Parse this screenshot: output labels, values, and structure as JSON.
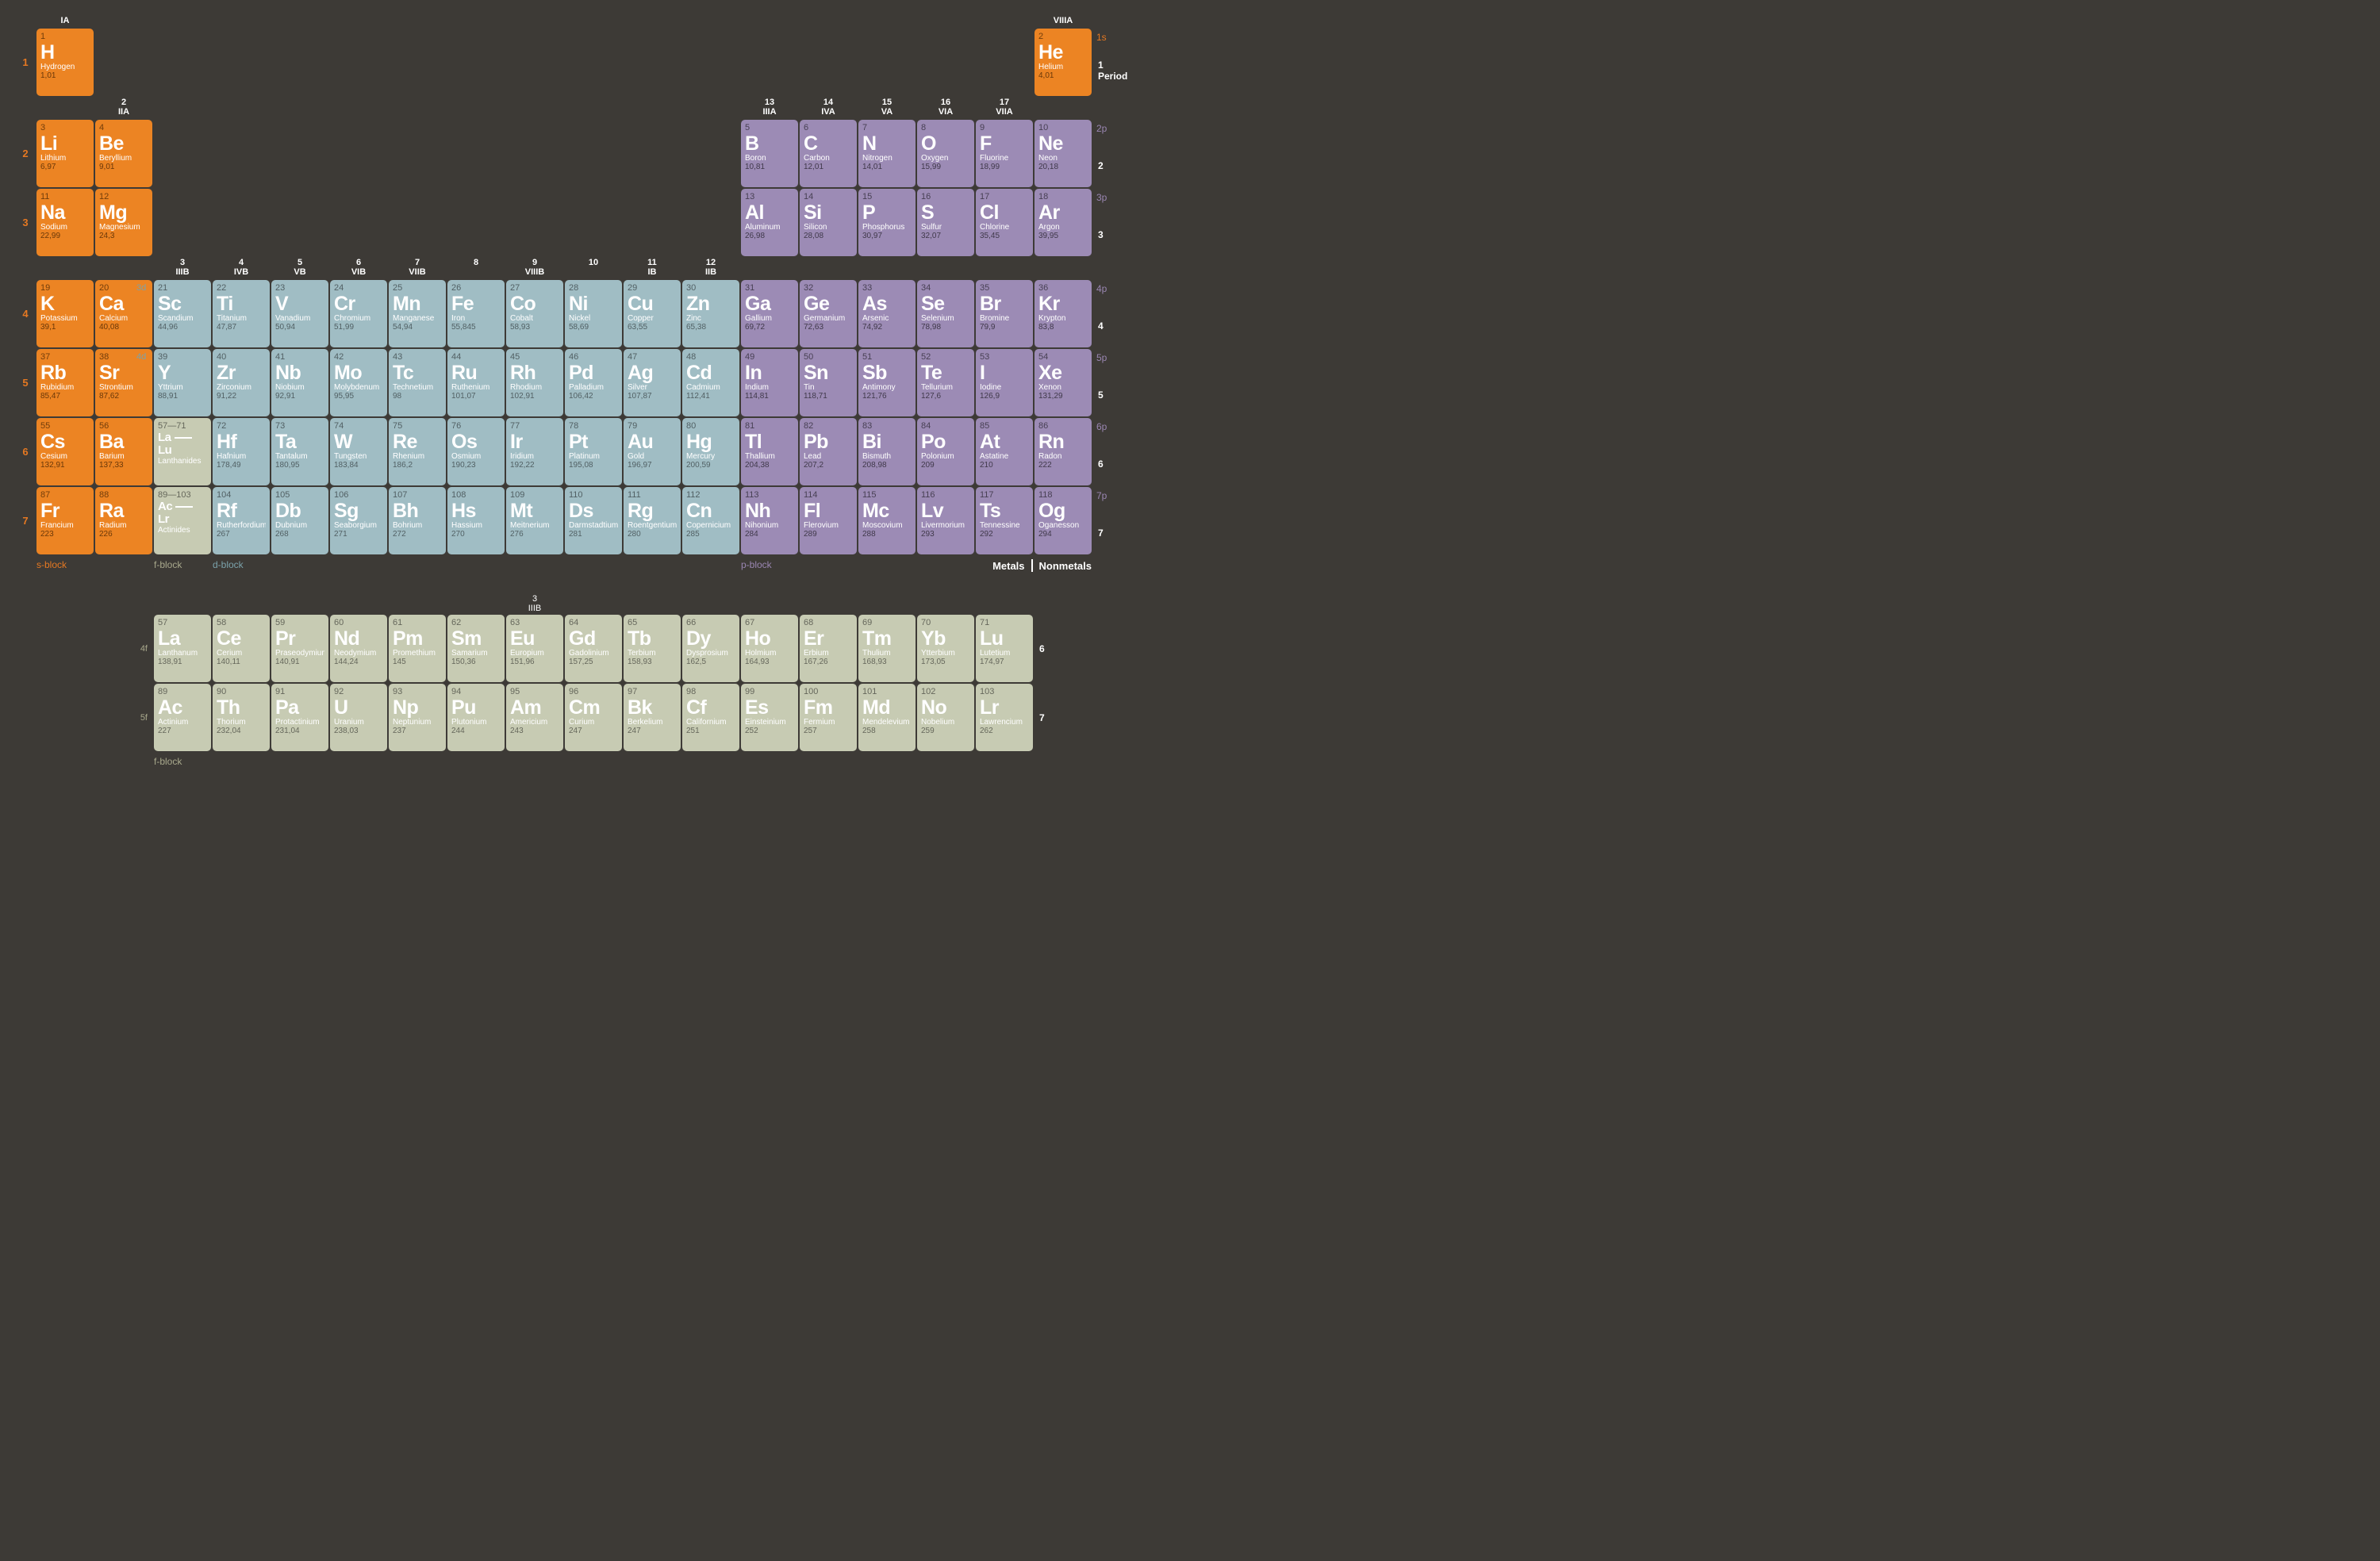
{
  "colors": {
    "background": "#3d3a36",
    "s_block": "#ec8423",
    "p_block": "#9c8bb5",
    "d_block": "#a0bdc4",
    "f_block": "#c7cbb3"
  },
  "group_headers": [
    {
      "col": 1,
      "num": "",
      "label": "IA"
    },
    {
      "col": 2,
      "num": "2",
      "label": "IIA"
    },
    {
      "col": 3,
      "num": "3",
      "label": "IIIB"
    },
    {
      "col": 4,
      "num": "4",
      "label": "IVB"
    },
    {
      "col": 5,
      "num": "5",
      "label": "VB"
    },
    {
      "col": 6,
      "num": "6",
      "label": "VIB"
    },
    {
      "col": 7,
      "num": "7",
      "label": "VIIB"
    },
    {
      "col": 8,
      "num": "8",
      "label": ""
    },
    {
      "col": 9,
      "num": "9",
      "label": "VIIIB"
    },
    {
      "col": 10,
      "num": "10",
      "label": ""
    },
    {
      "col": 11,
      "num": "11",
      "label": "IB"
    },
    {
      "col": 12,
      "num": "12",
      "label": "IIB"
    },
    {
      "col": 13,
      "num": "13",
      "label": "IIIA"
    },
    {
      "col": 14,
      "num": "14",
      "label": "IVA"
    },
    {
      "col": 15,
      "num": "15",
      "label": "VA"
    },
    {
      "col": 16,
      "num": "16",
      "label": "VIA"
    },
    {
      "col": 17,
      "num": "17",
      "label": "VIIA"
    },
    {
      "col": 18,
      "num": "",
      "label": "VIIIA"
    }
  ],
  "shells": {
    "1": "1s",
    "2": "2p",
    "3": "3p",
    "4": "4p",
    "5": "5p",
    "6": "6p",
    "7": "7p"
  },
  "d_sublabels": {
    "4": "3d",
    "5": "4d"
  },
  "f_sublabels": {
    "6": "4f",
    "7": "5f"
  },
  "elements": [
    {
      "n": 1,
      "sym": "H",
      "name": "Hydrogen",
      "mass": "1,01",
      "p": 1,
      "g": 1,
      "block": "s"
    },
    {
      "n": 2,
      "sym": "He",
      "name": "Helium",
      "mass": "4,01",
      "p": 1,
      "g": 18,
      "block": "s"
    },
    {
      "n": 3,
      "sym": "Li",
      "name": "Lithium",
      "mass": "6,97",
      "p": 2,
      "g": 1,
      "block": "s"
    },
    {
      "n": 4,
      "sym": "Be",
      "name": "Beryllium",
      "mass": "9,01",
      "p": 2,
      "g": 2,
      "block": "s"
    },
    {
      "n": 5,
      "sym": "B",
      "name": "Boron",
      "mass": "10,81",
      "p": 2,
      "g": 13,
      "block": "p"
    },
    {
      "n": 6,
      "sym": "C",
      "name": "Carbon",
      "mass": "12,01",
      "p": 2,
      "g": 14,
      "block": "p"
    },
    {
      "n": 7,
      "sym": "N",
      "name": "Nitrogen",
      "mass": "14,01",
      "p": 2,
      "g": 15,
      "block": "p"
    },
    {
      "n": 8,
      "sym": "O",
      "name": "Oxygen",
      "mass": "15,99",
      "p": 2,
      "g": 16,
      "block": "p"
    },
    {
      "n": 9,
      "sym": "F",
      "name": "Fluorine",
      "mass": "18,99",
      "p": 2,
      "g": 17,
      "block": "p"
    },
    {
      "n": 10,
      "sym": "Ne",
      "name": "Neon",
      "mass": "20,18",
      "p": 2,
      "g": 18,
      "block": "p"
    },
    {
      "n": 11,
      "sym": "Na",
      "name": "Sodium",
      "mass": "22,99",
      "p": 3,
      "g": 1,
      "block": "s"
    },
    {
      "n": 12,
      "sym": "Mg",
      "name": "Magnesium",
      "mass": "24,3",
      "p": 3,
      "g": 2,
      "block": "s"
    },
    {
      "n": 13,
      "sym": "Al",
      "name": "Aluminum",
      "mass": "26,98",
      "p": 3,
      "g": 13,
      "block": "p"
    },
    {
      "n": 14,
      "sym": "Si",
      "name": "Silicon",
      "mass": "28,08",
      "p": 3,
      "g": 14,
      "block": "p"
    },
    {
      "n": 15,
      "sym": "P",
      "name": "Phosphorus",
      "mass": "30,97",
      "p": 3,
      "g": 15,
      "block": "p"
    },
    {
      "n": 16,
      "sym": "S",
      "name": "Sulfur",
      "mass": "32,07",
      "p": 3,
      "g": 16,
      "block": "p"
    },
    {
      "n": 17,
      "sym": "Cl",
      "name": "Chlorine",
      "mass": "35,45",
      "p": 3,
      "g": 17,
      "block": "p"
    },
    {
      "n": 18,
      "sym": "Ar",
      "name": "Argon",
      "mass": "39,95",
      "p": 3,
      "g": 18,
      "block": "p"
    },
    {
      "n": 19,
      "sym": "K",
      "name": "Potassium",
      "mass": "39,1",
      "p": 4,
      "g": 1,
      "block": "s"
    },
    {
      "n": 20,
      "sym": "Ca",
      "name": "Calcium",
      "mass": "40,08",
      "p": 4,
      "g": 2,
      "block": "s"
    },
    {
      "n": 21,
      "sym": "Sc",
      "name": "Scandium",
      "mass": "44,96",
      "p": 4,
      "g": 3,
      "block": "d"
    },
    {
      "n": 22,
      "sym": "Ti",
      "name": "Titanium",
      "mass": "47,87",
      "p": 4,
      "g": 4,
      "block": "d"
    },
    {
      "n": 23,
      "sym": "V",
      "name": "Vanadium",
      "mass": "50,94",
      "p": 4,
      "g": 5,
      "block": "d"
    },
    {
      "n": 24,
      "sym": "Cr",
      "name": "Chromium",
      "mass": "51,99",
      "p": 4,
      "g": 6,
      "block": "d"
    },
    {
      "n": 25,
      "sym": "Mn",
      "name": "Manganese",
      "mass": "54,94",
      "p": 4,
      "g": 7,
      "block": "d"
    },
    {
      "n": 26,
      "sym": "Fe",
      "name": "Iron",
      "mass": "55,845",
      "p": 4,
      "g": 8,
      "block": "d"
    },
    {
      "n": 27,
      "sym": "Co",
      "name": "Cobalt",
      "mass": "58,93",
      "p": 4,
      "g": 9,
      "block": "d"
    },
    {
      "n": 28,
      "sym": "Ni",
      "name": "Nickel",
      "mass": "58,69",
      "p": 4,
      "g": 10,
      "block": "d"
    },
    {
      "n": 29,
      "sym": "Cu",
      "name": "Copper",
      "mass": "63,55",
      "p": 4,
      "g": 11,
      "block": "d"
    },
    {
      "n": 30,
      "sym": "Zn",
      "name": "Zinc",
      "mass": "65,38",
      "p": 4,
      "g": 12,
      "block": "d"
    },
    {
      "n": 31,
      "sym": "Ga",
      "name": "Gallium",
      "mass": "69,72",
      "p": 4,
      "g": 13,
      "block": "p"
    },
    {
      "n": 32,
      "sym": "Ge",
      "name": "Germanium",
      "mass": "72,63",
      "p": 4,
      "g": 14,
      "block": "p"
    },
    {
      "n": 33,
      "sym": "As",
      "name": "Arsenic",
      "mass": "74,92",
      "p": 4,
      "g": 15,
      "block": "p"
    },
    {
      "n": 34,
      "sym": "Se",
      "name": "Selenium",
      "mass": "78,98",
      "p": 4,
      "g": 16,
      "block": "p"
    },
    {
      "n": 35,
      "sym": "Br",
      "name": "Bromine",
      "mass": "79,9",
      "p": 4,
      "g": 17,
      "block": "p"
    },
    {
      "n": 36,
      "sym": "Kr",
      "name": "Krypton",
      "mass": "83,8",
      "p": 4,
      "g": 18,
      "block": "p"
    },
    {
      "n": 37,
      "sym": "Rb",
      "name": "Rubidium",
      "mass": "85,47",
      "p": 5,
      "g": 1,
      "block": "s"
    },
    {
      "n": 38,
      "sym": "Sr",
      "name": "Strontium",
      "mass": "87,62",
      "p": 5,
      "g": 2,
      "block": "s"
    },
    {
      "n": 39,
      "sym": "Y",
      "name": "Yttrium",
      "mass": "88,91",
      "p": 5,
      "g": 3,
      "block": "d"
    },
    {
      "n": 40,
      "sym": "Zr",
      "name": "Zirconium",
      "mass": "91,22",
      "p": 5,
      "g": 4,
      "block": "d"
    },
    {
      "n": 41,
      "sym": "Nb",
      "name": "Niobium",
      "mass": "92,91",
      "p": 5,
      "g": 5,
      "block": "d"
    },
    {
      "n": 42,
      "sym": "Mo",
      "name": "Molybdenum",
      "mass": "95,95",
      "p": 5,
      "g": 6,
      "block": "d"
    },
    {
      "n": 43,
      "sym": "Tc",
      "name": "Technetium",
      "mass": "98",
      "p": 5,
      "g": 7,
      "block": "d"
    },
    {
      "n": 44,
      "sym": "Ru",
      "name": "Ruthenium",
      "mass": "101,07",
      "p": 5,
      "g": 8,
      "block": "d"
    },
    {
      "n": 45,
      "sym": "Rh",
      "name": "Rhodium",
      "mass": "102,91",
      "p": 5,
      "g": 9,
      "block": "d"
    },
    {
      "n": 46,
      "sym": "Pd",
      "name": "Palladium",
      "mass": "106,42",
      "p": 5,
      "g": 10,
      "block": "d"
    },
    {
      "n": 47,
      "sym": "Ag",
      "name": "Silver",
      "mass": "107,87",
      "p": 5,
      "g": 11,
      "block": "d"
    },
    {
      "n": 48,
      "sym": "Cd",
      "name": "Cadmium",
      "mass": "112,41",
      "p": 5,
      "g": 12,
      "block": "d"
    },
    {
      "n": 49,
      "sym": "In",
      "name": "Indium",
      "mass": "114,81",
      "p": 5,
      "g": 13,
      "block": "p"
    },
    {
      "n": 50,
      "sym": "Sn",
      "name": "Tin",
      "mass": "118,71",
      "p": 5,
      "g": 14,
      "block": "p"
    },
    {
      "n": 51,
      "sym": "Sb",
      "name": "Antimony",
      "mass": "121,76",
      "p": 5,
      "g": 15,
      "block": "p"
    },
    {
      "n": 52,
      "sym": "Te",
      "name": "Tellurium",
      "mass": "127,6",
      "p": 5,
      "g": 16,
      "block": "p"
    },
    {
      "n": 53,
      "sym": "I",
      "name": "Iodine",
      "mass": "126,9",
      "p": 5,
      "g": 17,
      "block": "p"
    },
    {
      "n": 54,
      "sym": "Xe",
      "name": "Xenon",
      "mass": "131,29",
      "p": 5,
      "g": 18,
      "block": "p"
    },
    {
      "n": 55,
      "sym": "Cs",
      "name": "Cesium",
      "mass": "132,91",
      "p": 6,
      "g": 1,
      "block": "s"
    },
    {
      "n": 56,
      "sym": "Ba",
      "name": "Barium",
      "mass": "137,33",
      "p": 6,
      "g": 2,
      "block": "s"
    },
    {
      "n": 72,
      "sym": "Hf",
      "name": "Hafnium",
      "mass": "178,49",
      "p": 6,
      "g": 4,
      "block": "d"
    },
    {
      "n": 73,
      "sym": "Ta",
      "name": "Tantalum",
      "mass": "180,95",
      "p": 6,
      "g": 5,
      "block": "d"
    },
    {
      "n": 74,
      "sym": "W",
      "name": "Tungsten",
      "mass": "183,84",
      "p": 6,
      "g": 6,
      "block": "d"
    },
    {
      "n": 75,
      "sym": "Re",
      "name": "Rhenium",
      "mass": "186,2",
      "p": 6,
      "g": 7,
      "block": "d"
    },
    {
      "n": 76,
      "sym": "Os",
      "name": "Osmium",
      "mass": "190,23",
      "p": 6,
      "g": 8,
      "block": "d"
    },
    {
      "n": 77,
      "sym": "Ir",
      "name": "Iridium",
      "mass": "192,22",
      "p": 6,
      "g": 9,
      "block": "d"
    },
    {
      "n": 78,
      "sym": "Pt",
      "name": "Platinum",
      "mass": "195,08",
      "p": 6,
      "g": 10,
      "block": "d"
    },
    {
      "n": 79,
      "sym": "Au",
      "name": "Gold",
      "mass": "196,97",
      "p": 6,
      "g": 11,
      "block": "d"
    },
    {
      "n": 80,
      "sym": "Hg",
      "name": "Mercury",
      "mass": "200,59",
      "p": 6,
      "g": 12,
      "block": "d"
    },
    {
      "n": 81,
      "sym": "Tl",
      "name": "Thallium",
      "mass": "204,38",
      "p": 6,
      "g": 13,
      "block": "p"
    },
    {
      "n": 82,
      "sym": "Pb",
      "name": "Lead",
      "mass": "207,2",
      "p": 6,
      "g": 14,
      "block": "p"
    },
    {
      "n": 83,
      "sym": "Bi",
      "name": "Bismuth",
      "mass": "208,98",
      "p": 6,
      "g": 15,
      "block": "p"
    },
    {
      "n": 84,
      "sym": "Po",
      "name": "Polonium",
      "mass": "209",
      "p": 6,
      "g": 16,
      "block": "p"
    },
    {
      "n": 85,
      "sym": "At",
      "name": "Astatine",
      "mass": "210",
      "p": 6,
      "g": 17,
      "block": "p"
    },
    {
      "n": 86,
      "sym": "Rn",
      "name": "Radon",
      "mass": "222",
      "p": 6,
      "g": 18,
      "block": "p"
    },
    {
      "n": 87,
      "sym": "Fr",
      "name": "Francium",
      "mass": "223",
      "p": 7,
      "g": 1,
      "block": "s"
    },
    {
      "n": 88,
      "sym": "Ra",
      "name": "Radium",
      "mass": "226",
      "p": 7,
      "g": 2,
      "block": "s"
    },
    {
      "n": 104,
      "sym": "Rf",
      "name": "Rutherfordium",
      "mass": "267",
      "p": 7,
      "g": 4,
      "block": "d"
    },
    {
      "n": 105,
      "sym": "Db",
      "name": "Dubnium",
      "mass": "268",
      "p": 7,
      "g": 5,
      "block": "d"
    },
    {
      "n": 106,
      "sym": "Sg",
      "name": "Seaborgium",
      "mass": "271",
      "p": 7,
      "g": 6,
      "block": "d"
    },
    {
      "n": 107,
      "sym": "Bh",
      "name": "Bohrium",
      "mass": "272",
      "p": 7,
      "g": 7,
      "block": "d"
    },
    {
      "n": 108,
      "sym": "Hs",
      "name": "Hassium",
      "mass": "270",
      "p": 7,
      "g": 8,
      "block": "d"
    },
    {
      "n": 109,
      "sym": "Mt",
      "name": "Meitnerium",
      "mass": "276",
      "p": 7,
      "g": 9,
      "block": "d"
    },
    {
      "n": 110,
      "sym": "Ds",
      "name": "Darmstadtium",
      "mass": "281",
      "p": 7,
      "g": 10,
      "block": "d"
    },
    {
      "n": 111,
      "sym": "Rg",
      "name": "Roentgentium",
      "mass": "280",
      "p": 7,
      "g": 11,
      "block": "d"
    },
    {
      "n": 112,
      "sym": "Cn",
      "name": "Copernicium",
      "mass": "285",
      "p": 7,
      "g": 12,
      "block": "d"
    },
    {
      "n": 113,
      "sym": "Nh",
      "name": "Nihonium",
      "mass": "284",
      "p": 7,
      "g": 13,
      "block": "p"
    },
    {
      "n": 114,
      "sym": "Fl",
      "name": "Flerovium",
      "mass": "289",
      "p": 7,
      "g": 14,
      "block": "p"
    },
    {
      "n": 115,
      "sym": "Mc",
      "name": "Moscovium",
      "mass": "288",
      "p": 7,
      "g": 15,
      "block": "p"
    },
    {
      "n": 116,
      "sym": "Lv",
      "name": "Livermorium",
      "mass": "293",
      "p": 7,
      "g": 16,
      "block": "p"
    },
    {
      "n": 117,
      "sym": "Ts",
      "name": "Tennessine",
      "mass": "292",
      "p": 7,
      "g": 17,
      "block": "p"
    },
    {
      "n": 118,
      "sym": "Og",
      "name": "Oganesson",
      "mass": "294",
      "p": 7,
      "g": 18,
      "block": "p"
    }
  ],
  "placeholders": [
    {
      "range": "57—71",
      "from": "La",
      "to": "Lu",
      "name": "Lanthanides",
      "p": 6,
      "g": 3
    },
    {
      "range": "89—103",
      "from": "Ac",
      "to": "Lr",
      "name": "Actinides",
      "p": 7,
      "g": 3
    }
  ],
  "f_elements": [
    {
      "n": 57,
      "sym": "La",
      "name": "Lanthanum",
      "mass": "138,91",
      "row": 6
    },
    {
      "n": 58,
      "sym": "Ce",
      "name": "Cerium",
      "mass": "140,11",
      "row": 6
    },
    {
      "n": 59,
      "sym": "Pr",
      "name": "Praseodymium",
      "mass": "140,91",
      "row": 6
    },
    {
      "n": 60,
      "sym": "Nd",
      "name": "Neodymium",
      "mass": "144,24",
      "row": 6
    },
    {
      "n": 61,
      "sym": "Pm",
      "name": "Promethium",
      "mass": "145",
      "row": 6
    },
    {
      "n": 62,
      "sym": "Sm",
      "name": "Samarium",
      "mass": "150,36",
      "row": 6
    },
    {
      "n": 63,
      "sym": "Eu",
      "name": "Europium",
      "mass": "151,96",
      "row": 6
    },
    {
      "n": 64,
      "sym": "Gd",
      "name": "Gadolinium",
      "mass": "157,25",
      "row": 6
    },
    {
      "n": 65,
      "sym": "Tb",
      "name": "Terbium",
      "mass": "158,93",
      "row": 6
    },
    {
      "n": 66,
      "sym": "Dy",
      "name": "Dysprosium",
      "mass": "162,5",
      "row": 6
    },
    {
      "n": 67,
      "sym": "Ho",
      "name": "Holmium",
      "mass": "164,93",
      "row": 6
    },
    {
      "n": 68,
      "sym": "Er",
      "name": "Erbium",
      "mass": "167,26",
      "row": 6
    },
    {
      "n": 69,
      "sym": "Tm",
      "name": "Thulium",
      "mass": "168,93",
      "row": 6
    },
    {
      "n": 70,
      "sym": "Yb",
      "name": "Ytterbium",
      "mass": "173,05",
      "row": 6
    },
    {
      "n": 71,
      "sym": "Lu",
      "name": "Lutetium",
      "mass": "174,97",
      "row": 6
    },
    {
      "n": 89,
      "sym": "Ac",
      "name": "Actinium",
      "mass": "227",
      "row": 7
    },
    {
      "n": 90,
      "sym": "Th",
      "name": "Thorium",
      "mass": "232,04",
      "row": 7
    },
    {
      "n": 91,
      "sym": "Pa",
      "name": "Protactinium",
      "mass": "231,04",
      "row": 7
    },
    {
      "n": 92,
      "sym": "U",
      "name": "Uranium",
      "mass": "238,03",
      "row": 7
    },
    {
      "n": 93,
      "sym": "Np",
      "name": "Neptunium",
      "mass": "237",
      "row": 7
    },
    {
      "n": 94,
      "sym": "Pu",
      "name": "Plutonium",
      "mass": "244",
      "row": 7
    },
    {
      "n": 95,
      "sym": "Am",
      "name": "Americium",
      "mass": "243",
      "row": 7
    },
    {
      "n": 96,
      "sym": "Cm",
      "name": "Curium",
      "mass": "247",
      "row": 7
    },
    {
      "n": 97,
      "sym": "Bk",
      "name": "Berkelium",
      "mass": "247",
      "row": 7
    },
    {
      "n": 98,
      "sym": "Cf",
      "name": "Californium",
      "mass": "251",
      "row": 7
    },
    {
      "n": 99,
      "sym": "Es",
      "name": "Einsteinium",
      "mass": "252",
      "row": 7
    },
    {
      "n": 100,
      "sym": "Fm",
      "name": "Fermium",
      "mass": "257",
      "row": 7
    },
    {
      "n": 101,
      "sym": "Md",
      "name": "Mendelevium",
      "mass": "258",
      "row": 7
    },
    {
      "n": 102,
      "sym": "No",
      "name": "Nobelium",
      "mass": "259",
      "row": 7
    },
    {
      "n": 103,
      "sym": "Lr",
      "name": "Lawrencium",
      "mass": "262",
      "row": 7
    }
  ],
  "block_labels": {
    "s": "s-block",
    "f": "f-block",
    "d": "d-block",
    "p": "p-block"
  },
  "legend": {
    "metals": "Metals",
    "nonmetals": "Nonmetals"
  },
  "period1_label": "1 Period",
  "f_group_header": {
    "num": "3",
    "label": "IIIB"
  },
  "f_bottom_label": "f-block"
}
